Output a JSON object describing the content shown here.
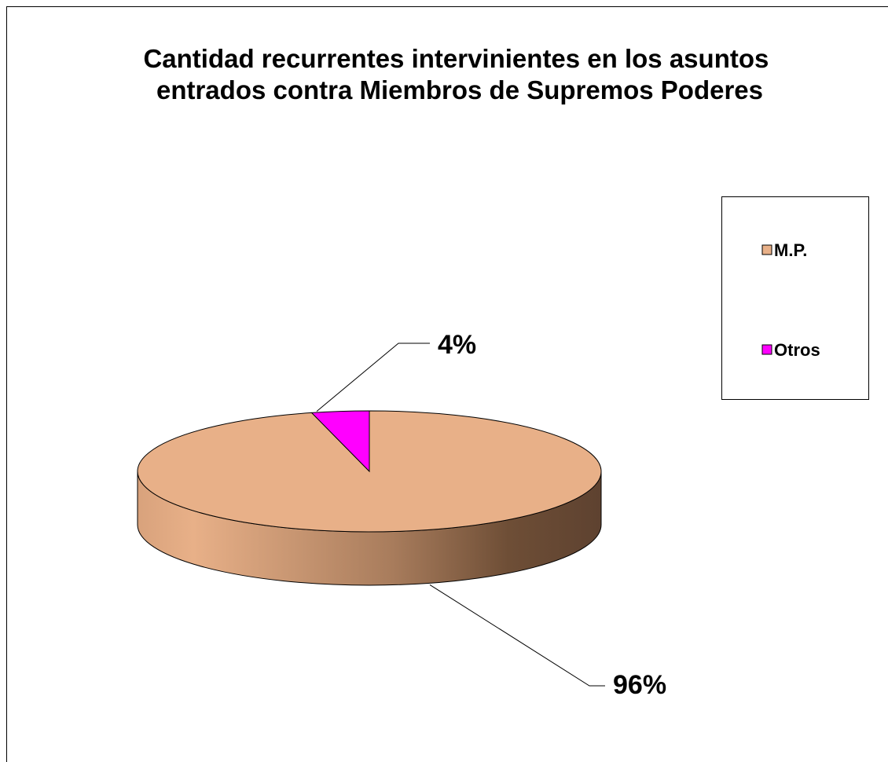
{
  "chart_data": {
    "type": "pie",
    "title": "Cantidad recurrentes intervinientes en los asuntos entrados contra Miembros de Supremos Poderes",
    "categories": [
      "M.P.",
      "Otros"
    ],
    "values": [
      96,
      4
    ],
    "value_labels": [
      "96%",
      "4%"
    ],
    "colors": [
      "#e8b088",
      "#ff00ff"
    ],
    "legend": "right"
  }
}
